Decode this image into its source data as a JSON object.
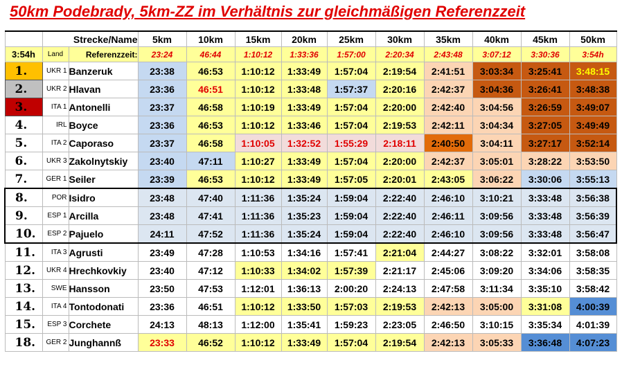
{
  "title": "50km Podebrady, 5km-ZZ im Verhältnis zur gleichmäßigen Referenzzeit",
  "header": {
    "label": "Strecke/Name",
    "distances": [
      "5km",
      "10km",
      "15km",
      "20km",
      "25km",
      "30km",
      "35km",
      "40km",
      "45km",
      "50km"
    ]
  },
  "reference": {
    "total": "3:54h",
    "land": "Land",
    "label": "Referenzzeit:",
    "times": [
      "23:24",
      "46:44",
      "1:10:12",
      "1:33:36",
      "1:57:00",
      "2:20:34",
      "2:43:48",
      "3:07:12",
      "3:30:36",
      "3:54h"
    ]
  },
  "rows": [
    {
      "rank": "1.",
      "country": "UKR 1",
      "name": "Banzeruk",
      "splits": [
        "23:38",
        "46:53",
        "1:10:12",
        "1:33:49",
        "1:57:04",
        "2:19:54",
        "2:41:51",
        "3:03:34",
        "3:25:41",
        "3:48:15"
      ]
    },
    {
      "rank": "2.",
      "country": "UKR 2",
      "name": "Hlavan",
      "splits": [
        "23:36",
        "46:51",
        "1:10:12",
        "1:33:48",
        "1:57:37",
        "2:20:16",
        "2:42:37",
        "3:04:36",
        "3:26:41",
        "3:48:38"
      ]
    },
    {
      "rank": "3.",
      "country": "ITA 1",
      "name": "Antonelli",
      "splits": [
        "23:37",
        "46:58",
        "1:10:19",
        "1:33:49",
        "1:57:04",
        "2:20:00",
        "2:42:40",
        "3:04:56",
        "3:26:59",
        "3:49:07"
      ]
    },
    {
      "rank": "4.",
      "country": "IRL",
      "name": "Boyce",
      "splits": [
        "23:36",
        "46:53",
        "1:10:12",
        "1:33:46",
        "1:57:04",
        "2:19:53",
        "2:42:11",
        "3:04:34",
        "3:27:05",
        "3:49:49"
      ]
    },
    {
      "rank": "5.",
      "country": "ITA 2",
      "name": "Caporaso",
      "splits": [
        "23:37",
        "46:58",
        "1:10:05",
        "1:32:52",
        "1:55:29",
        "2:18:11",
        "2:40:50",
        "3:04:11",
        "3:27:17",
        "3:52:14"
      ]
    },
    {
      "rank": "6.",
      "country": "UKR 3",
      "name": "Zakolnytskiy",
      "splits": [
        "23:40",
        "47:11",
        "1:10:27",
        "1:33:49",
        "1:57:04",
        "2:20:00",
        "2:42:37",
        "3:05:01",
        "3:28:22",
        "3:53:50"
      ]
    },
    {
      "rank": "7.",
      "country": "GER 1",
      "name": "Seiler",
      "splits": [
        "23:39",
        "46:53",
        "1:10:12",
        "1:33:49",
        "1:57:05",
        "2:20:01",
        "2:43:05",
        "3:06:22",
        "3:30:06",
        "3:55:13"
      ]
    },
    {
      "rank": "8.",
      "country": "POR",
      "name": "Isidro",
      "splits": [
        "23:48",
        "47:40",
        "1:11:36",
        "1:35:24",
        "1:59:04",
        "2:22:40",
        "2:46:10",
        "3:10:21",
        "3:33:48",
        "3:56:38"
      ]
    },
    {
      "rank": "9.",
      "country": "ESP 1",
      "name": "Arcilla",
      "splits": [
        "23:48",
        "47:41",
        "1:11:36",
        "1:35:23",
        "1:59:04",
        "2:22:40",
        "2:46:11",
        "3:09:56",
        "3:33:48",
        "3:56:39"
      ]
    },
    {
      "rank": "10.",
      "country": "ESP 2",
      "name": "Pajuelo",
      "splits": [
        "24:11",
        "47:52",
        "1:11:36",
        "1:35:24",
        "1:59:04",
        "2:22:40",
        "2:46:10",
        "3:09:56",
        "3:33:48",
        "3:56:47"
      ]
    },
    {
      "rank": "11.",
      "country": "ITA 3",
      "name": "Agrusti",
      "splits": [
        "23:49",
        "47:28",
        "1:10:53",
        "1:34:16",
        "1:57:41",
        "2:21:04",
        "2:44:27",
        "3:08:22",
        "3:32:01",
        "3:58:08"
      ]
    },
    {
      "rank": "12.",
      "country": "UKR 4",
      "name": "Hrechkovkiy",
      "splits": [
        "23:40",
        "47:12",
        "1:10:33",
        "1:34:02",
        "1:57:39",
        "2:21:17",
        "2:45:06",
        "3:09:20",
        "3:34:06",
        "3:58:35"
      ]
    },
    {
      "rank": "13.",
      "country": "SWE",
      "name": "Hansson",
      "splits": [
        "23:50",
        "47:53",
        "1:12:01",
        "1:36:13",
        "2:00:20",
        "2:24:13",
        "2:47:58",
        "3:11:34",
        "3:35:10",
        "3:58:42"
      ]
    },
    {
      "rank": "14.",
      "country": "ITA 4",
      "name": "Tontodonati",
      "splits": [
        "23:36",
        "46:51",
        "1:10:12",
        "1:33:50",
        "1:57:03",
        "2:19:53",
        "2:42:13",
        "3:05:00",
        "3:31:08",
        "4:00:39"
      ]
    },
    {
      "rank": "15.",
      "country": "ESP 3",
      "name": "Corchete",
      "splits": [
        "24:13",
        "48:13",
        "1:12:00",
        "1:35:41",
        "1:59:23",
        "2:23:05",
        "2:46:50",
        "3:10:15",
        "3:35:34",
        "4:01:39"
      ]
    },
    {
      "rank": "18.",
      "country": "GER 2",
      "name": "Junghannß",
      "splits": [
        "23:33",
        "46:52",
        "1:10:12",
        "1:33:49",
        "1:57:04",
        "2:19:54",
        "2:42:13",
        "3:05:33",
        "3:36:48",
        "4:07:23"
      ]
    }
  ]
}
